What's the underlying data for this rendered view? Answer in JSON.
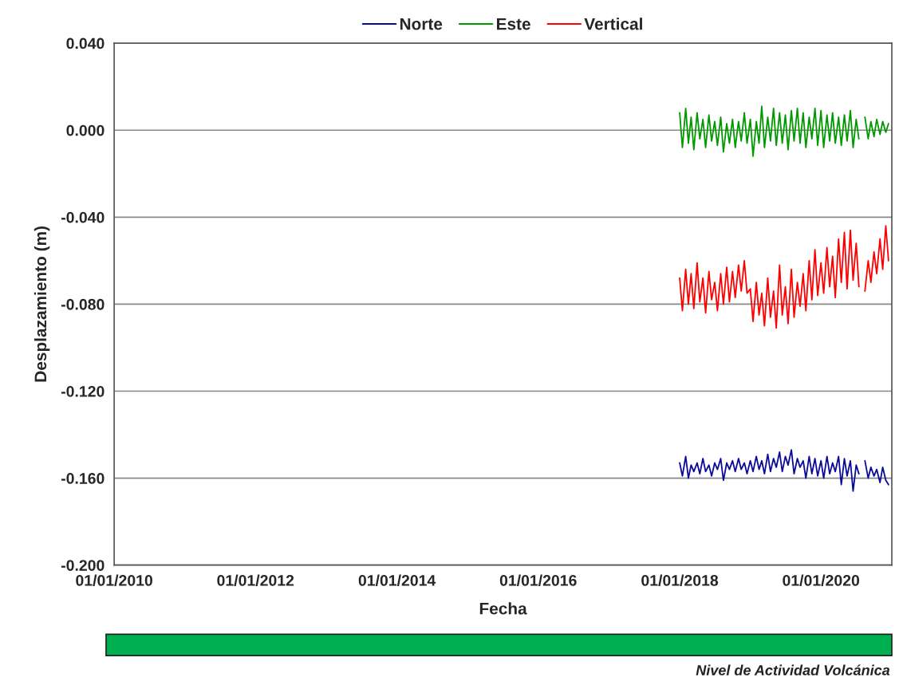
{
  "chart_data": {
    "type": "line",
    "xlabel": "Fecha",
    "ylabel": "Desplazamiento (m)",
    "annotations": [
      "Nivel de Actividad Volcánica"
    ],
    "x": [
      "2018-01-01",
      "2018-01-15",
      "2018-02-01",
      "2018-02-15",
      "2018-03-01",
      "2018-03-15",
      "2018-04-01",
      "2018-04-15",
      "2018-05-01",
      "2018-05-15",
      "2018-06-01",
      "2018-06-15",
      "2018-07-01",
      "2018-07-15",
      "2018-08-01",
      "2018-08-15",
      "2018-09-01",
      "2018-09-15",
      "2018-10-01",
      "2018-10-15",
      "2018-11-01",
      "2018-11-15",
      "2018-12-01",
      "2018-12-15",
      "2019-01-01",
      "2019-01-15",
      "2019-02-01",
      "2019-02-15",
      "2019-03-01",
      "2019-03-15",
      "2019-04-01",
      "2019-04-15",
      "2019-05-01",
      "2019-05-15",
      "2019-06-01",
      "2019-06-15",
      "2019-07-01",
      "2019-07-15",
      "2019-08-01",
      "2019-08-15",
      "2019-09-01",
      "2019-09-15",
      "2019-10-01",
      "2019-10-15",
      "2019-11-01",
      "2019-11-15",
      "2019-12-01",
      "2019-12-15",
      "2020-01-01",
      "2020-01-15",
      "2020-02-01",
      "2020-02-15",
      "2020-03-01",
      "2020-03-15",
      "2020-04-01",
      "2020-04-15",
      "2020-05-01",
      "2020-05-15",
      "2020-06-01",
      "2020-06-15",
      "2020-07-01",
      "2020-07-15",
      "2020-08-01",
      "2020-08-15",
      "2020-09-01",
      "2020-09-15",
      "2020-10-01",
      "2020-10-15",
      "2020-11-01",
      "2020-11-15",
      "2020-12-01",
      "2020-12-15"
    ],
    "series": [
      {
        "name": "Norte",
        "color": "#0a0a9a",
        "values": [
          -0.153,
          -0.159,
          -0.15,
          -0.16,
          -0.154,
          -0.157,
          -0.153,
          -0.158,
          -0.151,
          -0.157,
          -0.154,
          -0.159,
          -0.153,
          -0.156,
          -0.151,
          -0.161,
          -0.153,
          -0.156,
          -0.152,
          -0.157,
          -0.151,
          -0.156,
          -0.153,
          -0.158,
          -0.152,
          -0.157,
          -0.15,
          -0.156,
          -0.152,
          -0.158,
          -0.149,
          -0.157,
          -0.151,
          -0.155,
          -0.148,
          -0.157,
          -0.15,
          -0.154,
          -0.147,
          -0.158,
          -0.151,
          -0.155,
          -0.152,
          -0.16,
          -0.15,
          -0.158,
          -0.151,
          -0.159,
          -0.152,
          -0.16,
          -0.15,
          -0.158,
          -0.153,
          -0.157,
          -0.15,
          -0.163,
          -0.151,
          -0.159,
          -0.152,
          -0.166,
          -0.154,
          -0.158,
          null,
          -0.152,
          -0.16,
          -0.155,
          -0.159,
          -0.156,
          -0.162,
          -0.155,
          -0.161,
          -0.163
        ]
      },
      {
        "name": "Este",
        "color": "#009900",
        "values": [
          0.008,
          -0.008,
          0.01,
          -0.006,
          0.006,
          -0.009,
          0.008,
          -0.004,
          0.005,
          -0.008,
          0.007,
          -0.005,
          0.004,
          -0.007,
          0.006,
          -0.01,
          0.003,
          -0.006,
          0.005,
          -0.008,
          0.004,
          -0.005,
          0.008,
          -0.006,
          0.005,
          -0.012,
          0.004,
          -0.006,
          0.011,
          -0.008,
          0.006,
          -0.005,
          0.01,
          -0.007,
          0.008,
          -0.006,
          0.007,
          -0.009,
          0.009,
          -0.005,
          0.01,
          -0.006,
          0.008,
          -0.008,
          0.006,
          -0.004,
          0.01,
          -0.007,
          0.009,
          -0.008,
          0.007,
          -0.005,
          0.008,
          -0.006,
          0.006,
          -0.007,
          0.007,
          -0.005,
          0.009,
          -0.008,
          0.005,
          -0.004,
          null,
          0.006,
          -0.004,
          0.004,
          -0.003,
          0.005,
          -0.002,
          0.004,
          -0.001,
          0.003
        ]
      },
      {
        "name": "Vertical",
        "color": "#ff0000",
        "values": [
          -0.068,
          -0.083,
          -0.064,
          -0.08,
          -0.066,
          -0.082,
          -0.061,
          -0.079,
          -0.068,
          -0.084,
          -0.065,
          -0.078,
          -0.07,
          -0.083,
          -0.066,
          -0.08,
          -0.063,
          -0.079,
          -0.065,
          -0.077,
          -0.062,
          -0.074,
          -0.06,
          -0.075,
          -0.073,
          -0.088,
          -0.07,
          -0.085,
          -0.075,
          -0.09,
          -0.068,
          -0.086,
          -0.074,
          -0.091,
          -0.062,
          -0.085,
          -0.072,
          -0.089,
          -0.064,
          -0.086,
          -0.07,
          -0.081,
          -0.066,
          -0.083,
          -0.06,
          -0.078,
          -0.055,
          -0.076,
          -0.061,
          -0.075,
          -0.054,
          -0.072,
          -0.058,
          -0.077,
          -0.05,
          -0.07,
          -0.047,
          -0.073,
          -0.046,
          -0.069,
          -0.052,
          -0.072,
          null,
          -0.074,
          -0.06,
          -0.07,
          -0.056,
          -0.066,
          -0.05,
          -0.064,
          -0.044,
          -0.06
        ]
      }
    ],
    "xlim": [
      "2010-01-01",
      "2021-01-01"
    ],
    "xticks": [
      {
        "value": "2010-01-01",
        "label": "01/01/2010"
      },
      {
        "value": "2012-01-01",
        "label": "01/01/2012"
      },
      {
        "value": "2014-01-01",
        "label": "01/01/2014"
      },
      {
        "value": "2016-01-01",
        "label": "01/01/2016"
      },
      {
        "value": "2018-01-01",
        "label": "01/01/2018"
      },
      {
        "value": "2020-01-01",
        "label": "01/01/2020"
      }
    ],
    "ylim": [
      -0.2,
      0.04
    ],
    "yticks": [
      {
        "value": -0.2,
        "label": "-0.200"
      },
      {
        "value": -0.16,
        "label": "-0.160"
      },
      {
        "value": -0.12,
        "label": "-0.120"
      },
      {
        "value": -0.08,
        "label": "-0.080"
      },
      {
        "value": -0.04,
        "label": "-0.040"
      },
      {
        "value": 0,
        "label": "0.000"
      },
      {
        "value": 0.04,
        "label": "0.040"
      }
    ],
    "grid": "y",
    "legend": "top",
    "line_style": "solid"
  }
}
